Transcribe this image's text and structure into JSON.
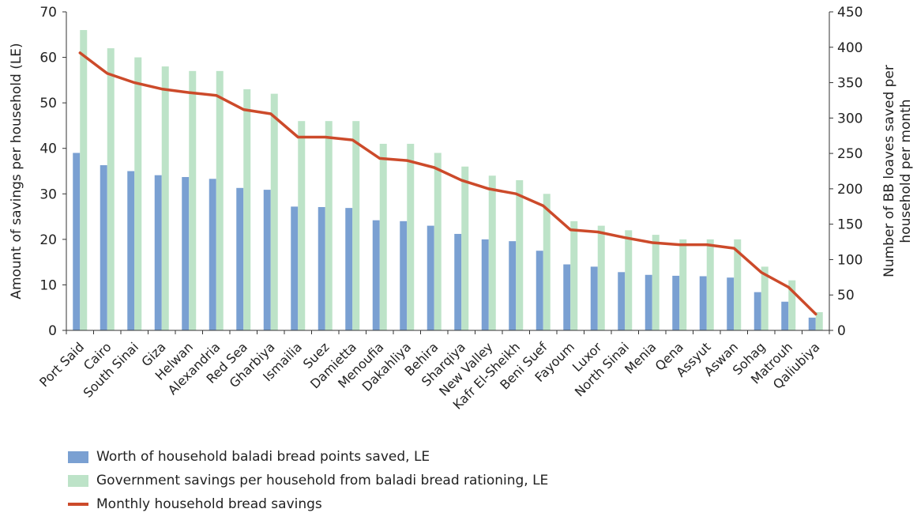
{
  "chart_data": {
    "type": "bar",
    "title": "",
    "categories": [
      "Port Said",
      "Cairo",
      "South Sinai",
      "Giza",
      "Helwan",
      "Alexandria",
      "Red Sea",
      "Gharbiya",
      "Ismailia",
      "Suez",
      "Damietta",
      "Menoufia",
      "Dakahliya",
      "Behira",
      "Sharqiya",
      "New Valley",
      "Kafr El-Sheikh",
      "Beni Suef",
      "Fayoum",
      "Luxor",
      "North Sinai",
      "Menia",
      "Qena",
      "Assyut",
      "Aswan",
      "Sohag",
      "Matrouh",
      "Qaliubiya"
    ],
    "series": [
      {
        "name": "Worth of household baladi bread points saved, LE",
        "type": "bar",
        "axis": "left",
        "color": "#7aa0d2",
        "values": [
          39,
          36.3,
          35,
          34.1,
          33.7,
          33.3,
          31.3,
          30.9,
          27.2,
          27.1,
          26.9,
          24.2,
          24,
          23,
          21.2,
          20,
          19.6,
          17.5,
          14.5,
          14,
          12.8,
          12.2,
          12,
          11.9,
          11.6,
          8.4,
          6.3,
          2.8
        ]
      },
      {
        "name": "Government savings per household from baladi bread rationing, LE",
        "type": "bar",
        "axis": "left",
        "color": "#bde3c8",
        "values": [
          66,
          62,
          60,
          58,
          57,
          57,
          53,
          52,
          46,
          46,
          46,
          41,
          41,
          39,
          36,
          34,
          33,
          30,
          24,
          23,
          22,
          21,
          20,
          20,
          20,
          14,
          11,
          4
        ]
      },
      {
        "name": "Monthly household bread savings",
        "type": "line",
        "axis": "right",
        "color": "#cc4a2a",
        "values": [
          392,
          363,
          350,
          341,
          336,
          332,
          312,
          306,
          273,
          273,
          269,
          243,
          240,
          230,
          212,
          200,
          193,
          176,
          142,
          139,
          131,
          124,
          121,
          121,
          116,
          82,
          61,
          23
        ]
      }
    ],
    "y_left": {
      "label": "Amount of savings per household (LE)",
      "ylim": [
        0,
        70
      ],
      "ticks": [
        0,
        10,
        20,
        30,
        40,
        50,
        60,
        70
      ]
    },
    "y_right": {
      "label_lines": [
        "Number of BB loaves saved per",
        "household per month"
      ],
      "ylim": [
        0,
        450
      ],
      "ticks": [
        0,
        50,
        100,
        150,
        200,
        250,
        300,
        350,
        400,
        450
      ]
    },
    "grid": false,
    "legend_position": "bottom-left"
  }
}
